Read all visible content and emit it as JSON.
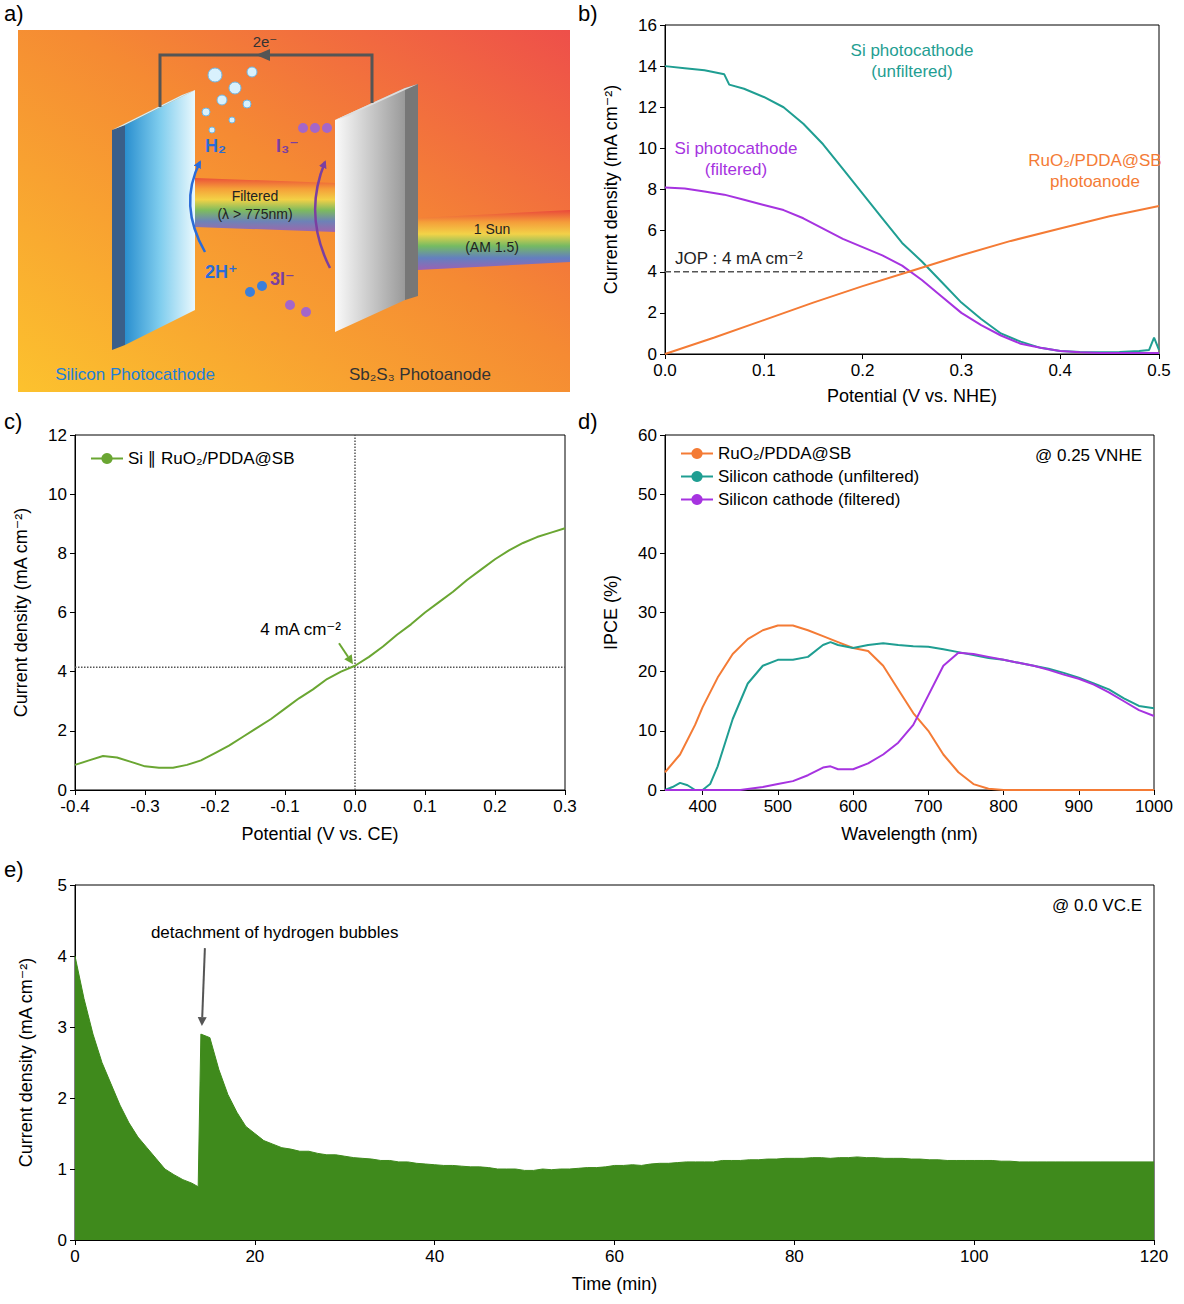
{
  "diagram": {
    "panel_label": "a)",
    "electrons": "2e⁻",
    "cathode_product": "H₂",
    "cathode_reactant": "2H⁺",
    "anode_product": "I₃⁻",
    "anode_reactant": "3I⁻",
    "beam_filtered": "Filtered (λ > 775nm)",
    "beam_sun": "1 Sun (AM 1.5)",
    "cathode_label": "Silicon Photocathode",
    "anode_label": "Sb₂S₃ Photoanode"
  },
  "chart_data": [
    {
      "panel_label": "b)",
      "type": "line",
      "x_label": "Potential (V vs. NHE)",
      "y_label": "Current density (mA cm⁻²)",
      "xlim": [
        0,
        0.5
      ],
      "xticks": [
        {
          "value": 0,
          "label": "0.0"
        },
        0.1,
        0.2,
        0.3,
        0.4,
        0.5
      ],
      "ylim": [
        0,
        16
      ],
      "yticks": [
        0,
        2,
        4,
        6,
        8,
        10,
        12,
        14,
        16
      ],
      "grid": false,
      "series": [
        {
          "name": "Si photocathode (unfiltered)",
          "color": "#1f9e92",
          "x": [
            0,
            0.02,
            0.04,
            0.06,
            0.065,
            0.08,
            0.1,
            0.12,
            0.14,
            0.16,
            0.18,
            0.2,
            0.22,
            0.24,
            0.26,
            0.28,
            0.3,
            0.32,
            0.34,
            0.36,
            0.38,
            0.4,
            0.42,
            0.44,
            0.46,
            0.48,
            0.49,
            0.495,
            0.5
          ],
          "values": [
            14.0,
            13.9,
            13.8,
            13.6,
            13.1,
            12.9,
            12.5,
            12.0,
            11.2,
            10.2,
            9.0,
            7.8,
            6.6,
            5.4,
            4.5,
            3.5,
            2.5,
            1.7,
            1.0,
            0.6,
            0.3,
            0.15,
            0.1,
            0.08,
            0.1,
            0.15,
            0.2,
            0.8,
            0.2
          ]
        },
        {
          "name": "Si photocathode (filtered)",
          "color": "#a633e0",
          "x": [
            0,
            0.02,
            0.04,
            0.06,
            0.08,
            0.1,
            0.12,
            0.14,
            0.16,
            0.18,
            0.2,
            0.22,
            0.24,
            0.26,
            0.28,
            0.3,
            0.32,
            0.34,
            0.36,
            0.38,
            0.4,
            0.42,
            0.44,
            0.46,
            0.48,
            0.5
          ],
          "values": [
            8.1,
            8.05,
            7.9,
            7.75,
            7.5,
            7.25,
            7.0,
            6.6,
            6.1,
            5.6,
            5.2,
            4.8,
            4.3,
            3.6,
            2.8,
            2.0,
            1.4,
            0.9,
            0.5,
            0.3,
            0.15,
            0.08,
            0.05,
            0.05,
            0.05,
            0.05
          ]
        },
        {
          "name": "RuO₂/PDDA@SB photoanode",
          "color": "#f47b35",
          "x": [
            0,
            0.05,
            0.1,
            0.15,
            0.2,
            0.25,
            0.3,
            0.35,
            0.4,
            0.45,
            0.5
          ],
          "values": [
            0,
            0.8,
            1.65,
            2.5,
            3.3,
            4.05,
            4.8,
            5.5,
            6.1,
            6.7,
            7.2
          ]
        }
      ],
      "reference_lines": [
        {
          "y": 4,
          "x": [
            0,
            0.25
          ],
          "line_style": "dashed",
          "label": "JOP : 4 mA cm⁻²"
        }
      ]
    },
    {
      "panel_label": "c)",
      "type": "line",
      "x_label": "Potential (V vs. CE)",
      "y_label": "Current density (mA cm⁻²)",
      "xlim": [
        -0.4,
        0.3
      ],
      "xticks": [
        -0.4,
        -0.3,
        -0.2,
        -0.1,
        {
          "value": 0,
          "label": "0.0"
        },
        0.1,
        0.2,
        0.3
      ],
      "ylim": [
        0,
        12
      ],
      "yticks": [
        0,
        2,
        4,
        6,
        8,
        10,
        12
      ],
      "grid": false,
      "legend": "top-left",
      "series": [
        {
          "name": "Si ∥ RuO₂/PDDA@SB",
          "color": "#6aa632",
          "x": [
            -0.4,
            -0.38,
            -0.36,
            -0.34,
            -0.32,
            -0.3,
            -0.28,
            -0.26,
            -0.24,
            -0.22,
            -0.2,
            -0.18,
            -0.16,
            -0.14,
            -0.12,
            -0.1,
            -0.08,
            -0.06,
            -0.04,
            -0.02,
            0,
            0.02,
            0.04,
            0.06,
            0.08,
            0.1,
            0.12,
            0.14,
            0.16,
            0.18,
            0.2,
            0.22,
            0.24,
            0.26,
            0.28,
            0.3
          ],
          "values": [
            0.85,
            1.0,
            1.15,
            1.1,
            0.95,
            0.8,
            0.75,
            0.75,
            0.85,
            1.0,
            1.25,
            1.5,
            1.8,
            2.1,
            2.4,
            2.75,
            3.1,
            3.4,
            3.75,
            4.0,
            4.2,
            4.5,
            4.85,
            5.25,
            5.6,
            6.0,
            6.35,
            6.7,
            7.1,
            7.45,
            7.8,
            8.1,
            8.35,
            8.55,
            8.7,
            8.85
          ]
        }
      ],
      "reference_lines": [
        {
          "x": 0,
          "line_style": "dotted"
        },
        {
          "y": 4.15,
          "line_style": "dotted"
        }
      ],
      "annotation": {
        "text": "4 mA cm⁻²",
        "x": 0,
        "y": 4.15
      }
    },
    {
      "panel_label": "d)",
      "type": "line",
      "x_label": "Wavelength (nm)",
      "y_label": "IPCE (%)",
      "xlim": [
        350,
        1000
      ],
      "xticks": [
        400,
        500,
        600,
        700,
        800,
        900,
        1000
      ],
      "ylim": [
        0,
        60
      ],
      "yticks": [
        0,
        10,
        20,
        30,
        40,
        50,
        60
      ],
      "grid": false,
      "legend": "top-left",
      "note": "@ 0.25 VNHE",
      "series": [
        {
          "name": "RuO₂/PDDA@SB",
          "color": "#f47b35",
          "x": [
            350,
            370,
            390,
            400,
            420,
            440,
            460,
            480,
            500,
            520,
            540,
            560,
            580,
            600,
            620,
            640,
            660,
            680,
            700,
            720,
            740,
            760,
            780,
            800,
            850,
            900,
            950,
            1000
          ],
          "values": [
            3,
            6,
            11,
            14,
            19,
            23,
            25.5,
            27,
            27.8,
            27.8,
            27,
            26,
            25,
            24,
            23.5,
            21,
            17,
            13,
            10,
            6,
            3,
            1,
            0.2,
            0,
            0,
            0,
            0,
            0
          ]
        },
        {
          "name": "Silicon cathode (unfiltered)",
          "color": "#1f9e92",
          "x": [
            350,
            360,
            370,
            380,
            390,
            400,
            410,
            420,
            440,
            460,
            480,
            500,
            520,
            540,
            560,
            570,
            580,
            600,
            620,
            640,
            660,
            680,
            700,
            720,
            740,
            760,
            780,
            800,
            820,
            840,
            860,
            880,
            900,
            920,
            940,
            960,
            980,
            1000
          ],
          "values": [
            0,
            0.5,
            1.2,
            0.8,
            0,
            0,
            1,
            4,
            12,
            18,
            21,
            22,
            22,
            22.5,
            24.5,
            25,
            24.5,
            24,
            24.5,
            24.8,
            24.5,
            24.3,
            24.2,
            23.8,
            23.3,
            22.8,
            22.3,
            22,
            21.5,
            21,
            20.5,
            19.8,
            19,
            18,
            17,
            15.5,
            14.2,
            13.8
          ]
        },
        {
          "name": "Silicon cathode (filtered)",
          "color": "#a633e0",
          "x": [
            350,
            400,
            450,
            480,
            500,
            520,
            540,
            560,
            570,
            580,
            600,
            620,
            640,
            660,
            680,
            700,
            720,
            740,
            760,
            780,
            800,
            820,
            840,
            860,
            880,
            900,
            920,
            940,
            960,
            980,
            1000
          ],
          "values": [
            0,
            0,
            0,
            0.5,
            1,
            1.5,
            2.5,
            3.8,
            4,
            3.5,
            3.5,
            4.5,
            6,
            8,
            11,
            16,
            21,
            23.2,
            23,
            22.5,
            22,
            21.5,
            21,
            20.3,
            19.5,
            18.8,
            17.8,
            16.5,
            15,
            13.5,
            12.5
          ]
        }
      ]
    },
    {
      "panel_label": "e)",
      "type": "area",
      "x_label": "Time (min)",
      "y_label": "Current density (mA cm⁻²)",
      "xlim": [
        0,
        120
      ],
      "xticks": [
        0,
        20,
        40,
        60,
        80,
        100,
        120
      ],
      "ylim": [
        0,
        5
      ],
      "yticks": [
        0,
        1,
        2,
        3,
        4,
        5
      ],
      "grid": false,
      "note": "@ 0.0 VC.E",
      "series": [
        {
          "name": "Si ∥ RuO₂/PDDA@SB",
          "color": "#3f8a1c",
          "x": [
            0,
            1,
            2,
            3,
            4,
            5,
            6,
            7,
            8,
            9,
            10,
            11,
            12,
            13,
            13.7,
            14,
            15,
            16,
            17,
            18,
            19,
            20,
            21,
            22,
            23,
            24,
            25,
            26,
            27,
            28,
            29,
            30,
            31,
            32,
            33,
            34,
            35,
            36,
            37,
            38,
            39,
            40,
            41,
            42,
            43,
            44,
            45,
            46,
            47,
            48,
            49,
            50,
            51,
            52,
            53,
            54,
            55,
            56,
            57,
            58,
            59,
            60,
            61,
            62,
            63,
            64,
            65,
            66,
            67,
            68,
            69,
            70,
            71,
            72,
            73,
            74,
            75,
            76,
            77,
            78,
            79,
            80,
            81,
            82,
            83,
            84,
            85,
            86,
            87,
            88,
            89,
            90,
            91,
            92,
            93,
            94,
            95,
            96,
            97,
            98,
            99,
            100,
            101,
            102,
            103,
            104,
            105,
            106,
            107,
            108,
            109,
            110,
            111,
            112,
            113,
            114,
            115,
            116,
            117,
            118,
            119,
            120
          ],
          "values": [
            4.0,
            3.4,
            2.9,
            2.5,
            2.2,
            1.9,
            1.65,
            1.45,
            1.3,
            1.15,
            1.0,
            0.92,
            0.85,
            0.8,
            0.75,
            2.9,
            2.85,
            2.4,
            2.05,
            1.8,
            1.6,
            1.5,
            1.4,
            1.35,
            1.3,
            1.28,
            1.25,
            1.25,
            1.22,
            1.2,
            1.2,
            1.18,
            1.16,
            1.15,
            1.14,
            1.12,
            1.12,
            1.1,
            1.1,
            1.08,
            1.07,
            1.06,
            1.05,
            1.05,
            1.04,
            1.03,
            1.03,
            1.02,
            1.0,
            1.0,
            1.0,
            0.98,
            0.98,
            1.0,
            0.99,
            1.0,
            1.0,
            1.01,
            1.02,
            1.02,
            1.03,
            1.05,
            1.05,
            1.06,
            1.05,
            1.07,
            1.08,
            1.08,
            1.09,
            1.1,
            1.1,
            1.1,
            1.1,
            1.12,
            1.12,
            1.12,
            1.13,
            1.13,
            1.14,
            1.14,
            1.15,
            1.15,
            1.15,
            1.16,
            1.16,
            1.15,
            1.16,
            1.16,
            1.17,
            1.16,
            1.16,
            1.15,
            1.15,
            1.15,
            1.14,
            1.14,
            1.13,
            1.13,
            1.12,
            1.12,
            1.12,
            1.12,
            1.12,
            1.12,
            1.11,
            1.11,
            1.1,
            1.1,
            1.1,
            1.1,
            1.1,
            1.1,
            1.1,
            1.1,
            1.1,
            1.1,
            1.1,
            1.1,
            1.1,
            1.1,
            1.1,
            1.1
          ]
        }
      ],
      "annotation": {
        "text": "detachment of hydrogen bubbles",
        "x": 14,
        "y": 2.9
      }
    }
  ]
}
